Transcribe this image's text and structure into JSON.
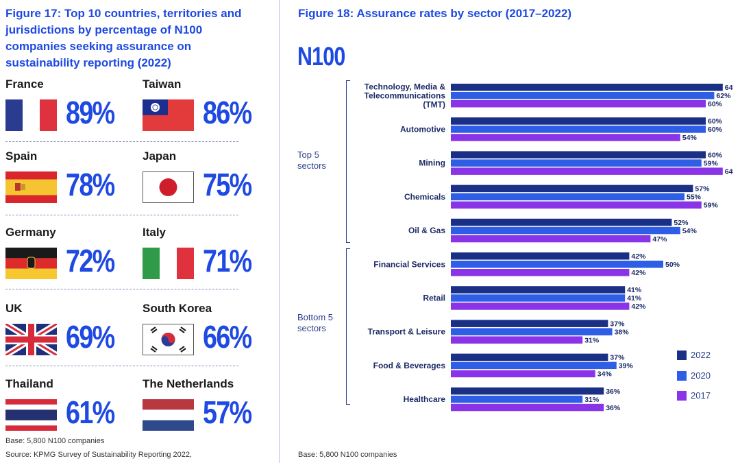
{
  "left": {
    "title": "Figure 17: Top 10 countries, territories and jurisdictions by percentage of N100 companies seeking assurance on sustainability reporting (2022)",
    "countries": [
      {
        "name": "France",
        "value": "89%"
      },
      {
        "name": "Taiwan",
        "value": "86%"
      },
      {
        "name": "Spain",
        "value": "78%"
      },
      {
        "name": "Japan",
        "value": "75%"
      },
      {
        "name": "Germany",
        "value": "72%"
      },
      {
        "name": "Italy",
        "value": "71%"
      },
      {
        "name": "UK",
        "value": "69%"
      },
      {
        "name": "South Korea",
        "value": "66%"
      },
      {
        "name": "Thailand",
        "value": "61%"
      },
      {
        "name": "The Netherlands",
        "value": "57%"
      }
    ],
    "base": "Base: 5,800 N100 companies",
    "source": "Source: KPMG Survey of Sustainability Reporting 2022,"
  },
  "right": {
    "title": "Figure 18: Assurance rates by sector (2017–2022)",
    "n100": "N100",
    "top_group": "Top 5\nsectors",
    "bottom_group": "Bottom 5\nsectors",
    "base": "Base: 5,800 N100 companies"
  },
  "chart_data": {
    "type": "bar",
    "orientation": "horizontal",
    "title": "Figure 18: Assurance rates by sector (2017–2022)",
    "categories": [
      "Technology, Media &\nTelecommunications\n(TMT)",
      "Automotive",
      "Mining",
      "Chemicals",
      "Oil & Gas",
      "Financial Services",
      "Retail",
      "Transport & Leisure",
      "Food & Beverages",
      "Healthcare"
    ],
    "series": [
      {
        "name": "2022",
        "color": "#1a2f86",
        "values": [
          64,
          60,
          60,
          57,
          52,
          42,
          41,
          37,
          37,
          36
        ]
      },
      {
        "name": "2020",
        "color": "#2f5ee6",
        "values": [
          62,
          60,
          59,
          55,
          54,
          50,
          41,
          38,
          39,
          31
        ]
      },
      {
        "name": "2017",
        "color": "#8a34e8",
        "values": [
          60,
          54,
          64,
          59,
          47,
          42,
          42,
          31,
          34,
          36
        ]
      }
    ],
    "value_suffix": "%",
    "xlim": [
      0,
      70
    ],
    "legend_position": "bottom-right",
    "grid": false
  }
}
